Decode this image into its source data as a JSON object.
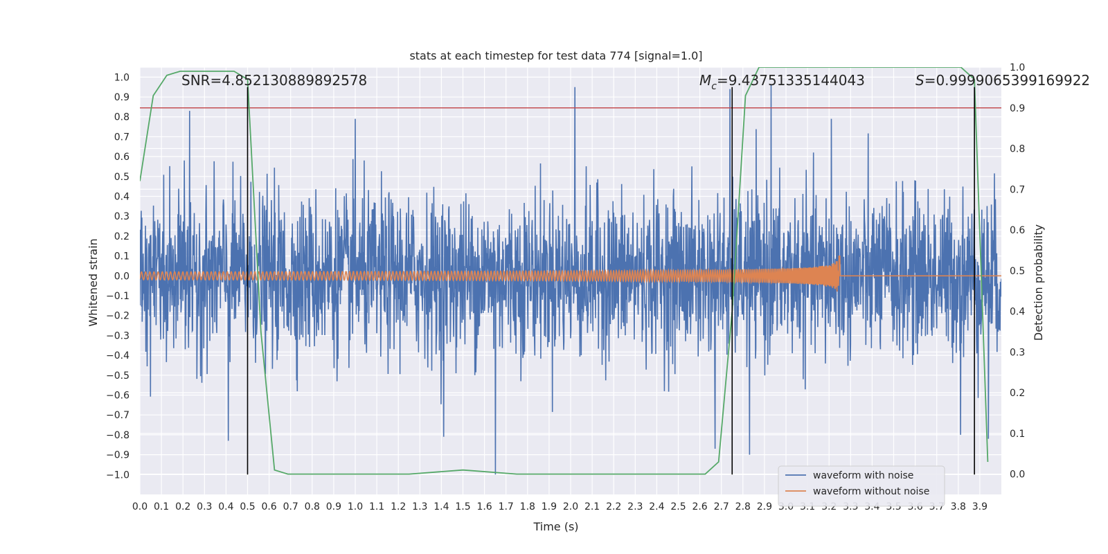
{
  "chart_data": {
    "type": "line",
    "title": "stats at each timestep for test data 774 [signal=1.0]",
    "xlabel": "Time (s)",
    "ylabel": "Whitened strain",
    "ylabel_right": "Detection probability",
    "xlim": [
      0.0,
      4.0
    ],
    "ylim": [
      -1.1,
      1.05
    ],
    "ylim_right": [
      -0.05,
      1.0
    ],
    "x_ticks": [
      "0.0",
      "0.1",
      "0.2",
      "0.3",
      "0.4",
      "0.5",
      "0.6",
      "0.7",
      "0.8",
      "0.9",
      "1.0",
      "1.1",
      "1.2",
      "1.3",
      "1.4",
      "1.5",
      "1.6",
      "1.7",
      "1.8",
      "1.9",
      "2.0",
      "2.1",
      "2.2",
      "2.3",
      "2.4",
      "2.5",
      "2.6",
      "2.7",
      "2.8",
      "2.9",
      "3.0",
      "3.1",
      "3.2",
      "3.3",
      "3.4",
      "3.5",
      "3.6",
      "3.7",
      "3.8",
      "3.9"
    ],
    "y_ticks": [
      "1.0",
      "0.9",
      "0.8",
      "0.7",
      "0.6",
      "0.5",
      "0.4",
      "0.3",
      "0.2",
      "0.1",
      "0.0",
      "−0.1",
      "−0.2",
      "−0.3",
      "−0.4",
      "−0.5",
      "−0.6",
      "−0.7",
      "−0.8",
      "−0.9",
      "−1.0"
    ],
    "y_right_ticks": [
      "1.0",
      "0.9",
      "0.8",
      "0.7",
      "0.6",
      "0.5",
      "0.4",
      "0.3",
      "0.2",
      "0.1",
      "0.0"
    ],
    "grid": true,
    "legend_position": "bottom-right",
    "annotations": {
      "snr": "SNR=4.852130889892578",
      "mc_symbol": "M",
      "mc_sub": "c",
      "mc_value": "=9.43751335144043",
      "s": "S=0.9999065399169922"
    },
    "vertical_lines_x": [
      0.5,
      2.75,
      3.875
    ],
    "threshold_right_y": 0.9,
    "series": [
      {
        "name": "waveform with noise",
        "color": "#4c72b0",
        "envelope": 0.45,
        "peaks": [
          [
            0.23,
            0.83
          ],
          [
            2.02,
            0.95
          ],
          [
            2.93,
            0.96
          ],
          [
            2.74,
            0.94
          ],
          [
            0.41,
            -0.83
          ],
          [
            1.65,
            -1.0
          ],
          [
            1.41,
            -0.81
          ],
          [
            2.67,
            -0.87
          ],
          [
            2.83,
            -0.9
          ],
          [
            3.81,
            -0.8
          ],
          [
            3.94,
            -0.82
          ],
          [
            1.0,
            0.79
          ],
          [
            3.21,
            0.79
          ]
        ]
      },
      {
        "name": "waveform without noise",
        "color": "#dd8452",
        "merger_time": 3.25,
        "peak_amplitude": 0.19,
        "initial_amplitude": 0.02,
        "start_frequency_hz": 20,
        "end_frequency_hz": 120
      },
      {
        "name": "detection probability",
        "axis": "right",
        "color": "#55a868",
        "x": [
          0.0,
          0.062,
          0.125,
          0.187,
          0.25,
          0.312,
          0.375,
          0.437,
          0.5,
          0.562,
          0.625,
          0.687,
          0.75,
          0.812,
          0.875,
          0.937,
          1.0,
          1.25,
          1.5,
          1.75,
          2.0,
          2.25,
          2.5,
          2.625,
          2.687,
          2.75,
          2.812,
          2.875,
          2.937,
          3.0,
          3.5,
          3.812,
          3.875,
          3.937
        ],
        "y": [
          0.72,
          0.93,
          0.98,
          0.99,
          0.99,
          0.99,
          0.99,
          0.99,
          0.97,
          0.35,
          0.01,
          0.0,
          0.0,
          0.0,
          0.0,
          0.0,
          0.0,
          0.0,
          0.01,
          0.0,
          0.0,
          0.0,
          0.0,
          0.0,
          0.03,
          0.4,
          0.93,
          1.0,
          1.0,
          1.0,
          1.0,
          1.0,
          0.97,
          0.03
        ]
      }
    ]
  }
}
